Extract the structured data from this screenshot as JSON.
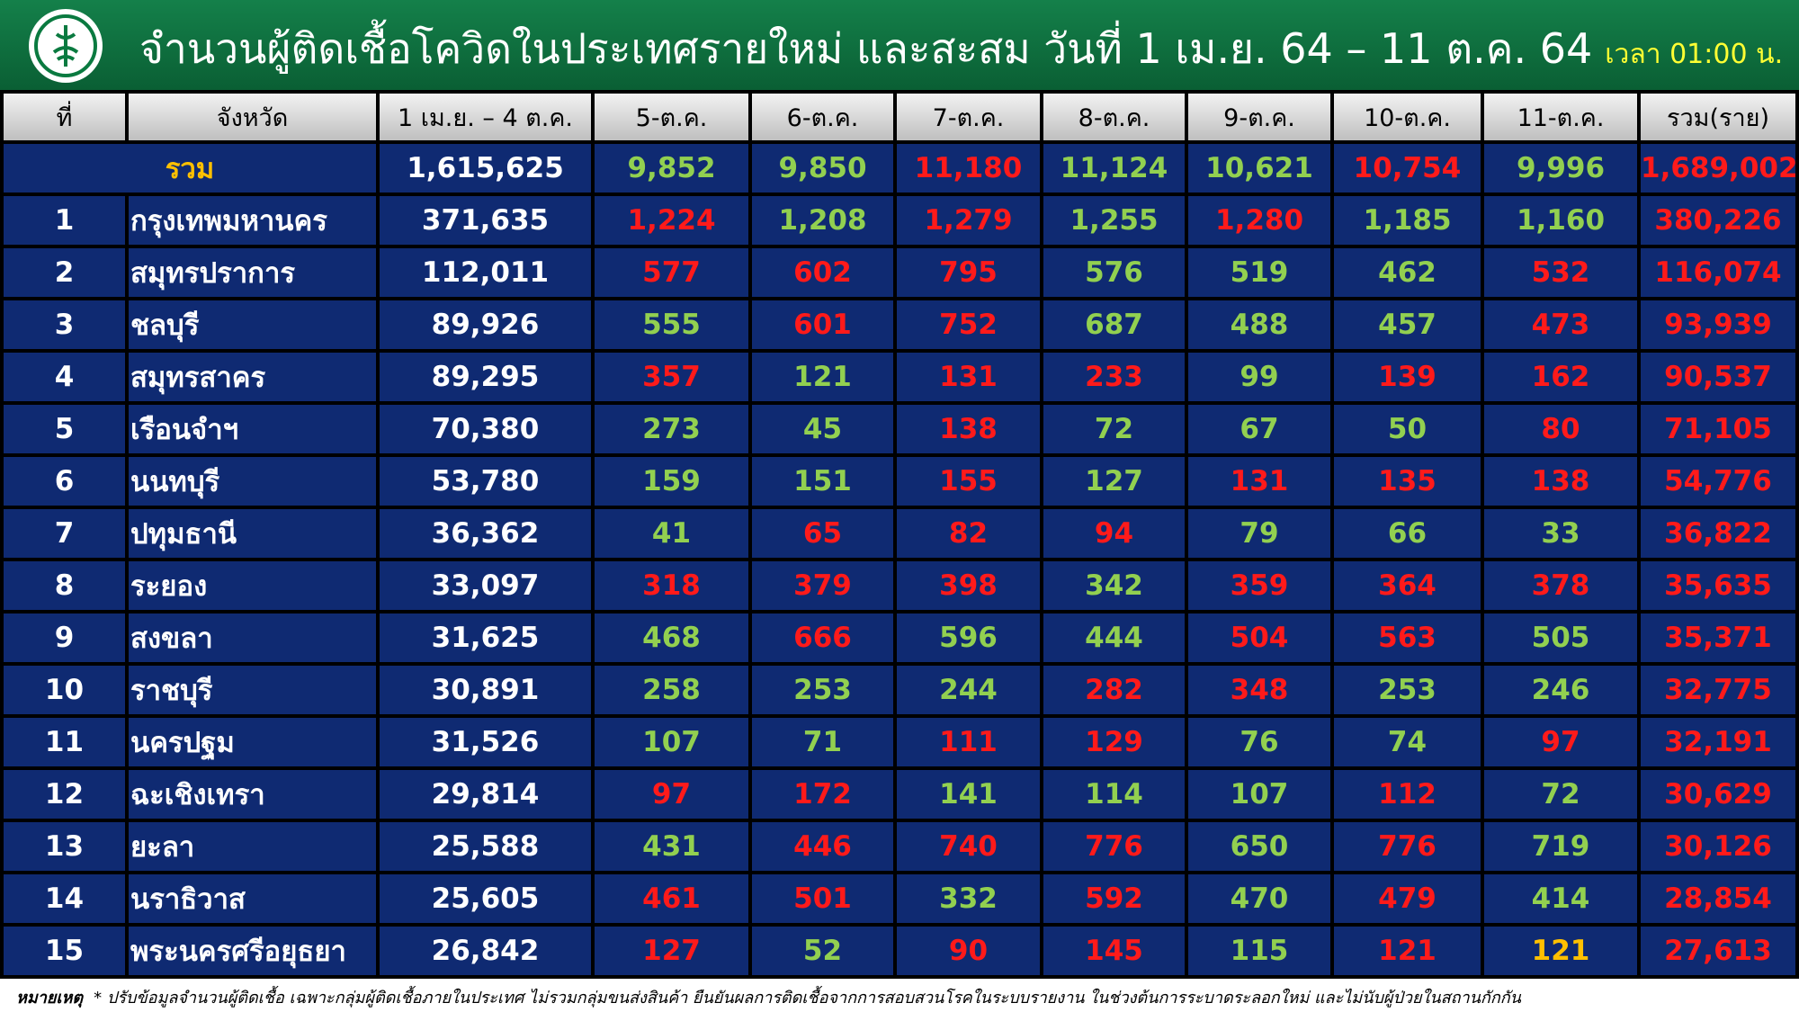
{
  "header": {
    "title": "จำนวนผู้ติดเชื้อโควิดในประเทศรายใหม่ และสะสม วันที่ 1 เม.ย. 64 – 11 ต.ค. 64",
    "time": "เวลา 01:00 น."
  },
  "table": {
    "columns": [
      "ที่",
      "จังหวัด",
      "1 เม.ย. – 4 ต.ค.",
      "5-ต.ค.",
      "6-ต.ค.",
      "7-ต.ค.",
      "8-ต.ค.",
      "9-ต.ค.",
      "10-ต.ค.",
      "11-ต.ค.",
      "รวม(ราย)"
    ],
    "total_row": {
      "label": "รวม",
      "cells": [
        "1,615,625",
        "9,852",
        "9,850",
        "11,180",
        "11,124",
        "10,621",
        "10,754",
        "9,996",
        "1,689,002"
      ],
      "colors": [
        "#ffffff",
        "#92d050",
        "#92d050",
        "#ff1a1a",
        "#92d050",
        "#92d050",
        "#ff1a1a",
        "#92d050",
        "#ff1a1a"
      ]
    },
    "rows": [
      [
        "1",
        "กรุงเทพมหานคร",
        "371,635",
        "1,224",
        "1,208",
        "1,279",
        "1,255",
        "1,280",
        "1,185",
        "1,160",
        "380,226"
      ],
      [
        "2",
        "สมุทรปราการ",
        "112,011",
        "577",
        "602",
        "795",
        "576",
        "519",
        "462",
        "532",
        "116,074"
      ],
      [
        "3",
        "ชลบุรี",
        "89,926",
        "555",
        "601",
        "752",
        "687",
        "488",
        "457",
        "473",
        "93,939"
      ],
      [
        "4",
        "สมุทรสาคร",
        "89,295",
        "357",
        "121",
        "131",
        "233",
        "99",
        "139",
        "162",
        "90,537"
      ],
      [
        "5",
        "เรือนจำฯ",
        "70,380",
        "273",
        "45",
        "138",
        "72",
        "67",
        "50",
        "80",
        "71,105"
      ],
      [
        "6",
        "นนทบุรี",
        "53,780",
        "159",
        "151",
        "155",
        "127",
        "131",
        "135",
        "138",
        "54,776"
      ],
      [
        "7",
        "ปทุมธานี",
        "36,362",
        "41",
        "65",
        "82",
        "94",
        "79",
        "66",
        "33",
        "36,822"
      ],
      [
        "8",
        "ระยอง",
        "33,097",
        "318",
        "379",
        "398",
        "342",
        "359",
        "364",
        "378",
        "35,635"
      ],
      [
        "9",
        "สงขลา",
        "31,625",
        "468",
        "666",
        "596",
        "444",
        "504",
        "563",
        "505",
        "35,371"
      ],
      [
        "10",
        "ราชบุรี",
        "30,891",
        "258",
        "253",
        "244",
        "282",
        "348",
        "253",
        "246",
        "32,775"
      ],
      [
        "11",
        "นครปฐม",
        "31,526",
        "107",
        "71",
        "111",
        "129",
        "76",
        "74",
        "97",
        "32,191"
      ],
      [
        "12",
        "ฉะเชิงเทรา",
        "29,814",
        "97",
        "172",
        "141",
        "114",
        "107",
        "112",
        "72",
        "30,629"
      ],
      [
        "13",
        "ยะลา",
        "25,588",
        "431",
        "446",
        "740",
        "776",
        "650",
        "776",
        "719",
        "30,126"
      ],
      [
        "14",
        "นราธิวาส",
        "25,605",
        "461",
        "501",
        "332",
        "592",
        "470",
        "479",
        "414",
        "28,854"
      ],
      [
        "15",
        "พระนครศรีอยุธยา",
        "26,842",
        "127",
        "52",
        "90",
        "145",
        "115",
        "121",
        "121",
        "27,613"
      ]
    ],
    "row_colors": [
      [
        "#ff1a1a",
        "#92d050",
        "#ff1a1a",
        "#92d050",
        "#ff1a1a",
        "#92d050",
        "#92d050",
        "#ff1a1a"
      ],
      [
        "#ff1a1a",
        "#ff1a1a",
        "#ff1a1a",
        "#92d050",
        "#92d050",
        "#92d050",
        "#ff1a1a",
        "#ff1a1a"
      ],
      [
        "#92d050",
        "#ff1a1a",
        "#ff1a1a",
        "#92d050",
        "#92d050",
        "#92d050",
        "#ff1a1a",
        "#ff1a1a"
      ],
      [
        "#ff1a1a",
        "#92d050",
        "#ff1a1a",
        "#ff1a1a",
        "#92d050",
        "#ff1a1a",
        "#ff1a1a",
        "#ff1a1a"
      ],
      [
        "#92d050",
        "#92d050",
        "#ff1a1a",
        "#92d050",
        "#92d050",
        "#92d050",
        "#ff1a1a",
        "#ff1a1a"
      ],
      [
        "#92d050",
        "#92d050",
        "#ff1a1a",
        "#92d050",
        "#ff1a1a",
        "#ff1a1a",
        "#ff1a1a",
        "#ff1a1a"
      ],
      [
        "#92d050",
        "#ff1a1a",
        "#ff1a1a",
        "#ff1a1a",
        "#92d050",
        "#92d050",
        "#92d050",
        "#ff1a1a"
      ],
      [
        "#ff1a1a",
        "#ff1a1a",
        "#ff1a1a",
        "#92d050",
        "#ff1a1a",
        "#ff1a1a",
        "#ff1a1a",
        "#ff1a1a"
      ],
      [
        "#92d050",
        "#ff1a1a",
        "#92d050",
        "#92d050",
        "#ff1a1a",
        "#ff1a1a",
        "#92d050",
        "#ff1a1a"
      ],
      [
        "#92d050",
        "#92d050",
        "#92d050",
        "#ff1a1a",
        "#ff1a1a",
        "#92d050",
        "#92d050",
        "#ff1a1a"
      ],
      [
        "#92d050",
        "#92d050",
        "#ff1a1a",
        "#ff1a1a",
        "#92d050",
        "#92d050",
        "#ff1a1a",
        "#ff1a1a"
      ],
      [
        "#ff1a1a",
        "#ff1a1a",
        "#92d050",
        "#92d050",
        "#92d050",
        "#ff1a1a",
        "#92d050",
        "#ff1a1a"
      ],
      [
        "#92d050",
        "#ff1a1a",
        "#ff1a1a",
        "#ff1a1a",
        "#92d050",
        "#ff1a1a",
        "#92d050",
        "#ff1a1a"
      ],
      [
        "#ff1a1a",
        "#ff1a1a",
        "#92d050",
        "#ff1a1a",
        "#92d050",
        "#ff1a1a",
        "#92d050",
        "#ff1a1a"
      ],
      [
        "#ff1a1a",
        "#92d050",
        "#ff1a1a",
        "#ff1a1a",
        "#92d050",
        "#ff1a1a",
        "#ffc000",
        "#ff1a1a"
      ]
    ]
  },
  "footnote": {
    "label": "หมายเหตุ",
    "text": "* ปรับข้อมูลจำนวนผู้ติดเชื้อ เฉพาะกลุ่มผู้ติดเชื้อภายในประเทศ ไม่รวมกลุ่มขนส่งสินค้า ยืนยันผลการติดเชื้อจากการสอบสวนโรคในระบบรายงาน ในช่วงต้นการระบาดระลอกใหม่ และไม่นับผู้ป่วยในสถานกักกัน"
  }
}
